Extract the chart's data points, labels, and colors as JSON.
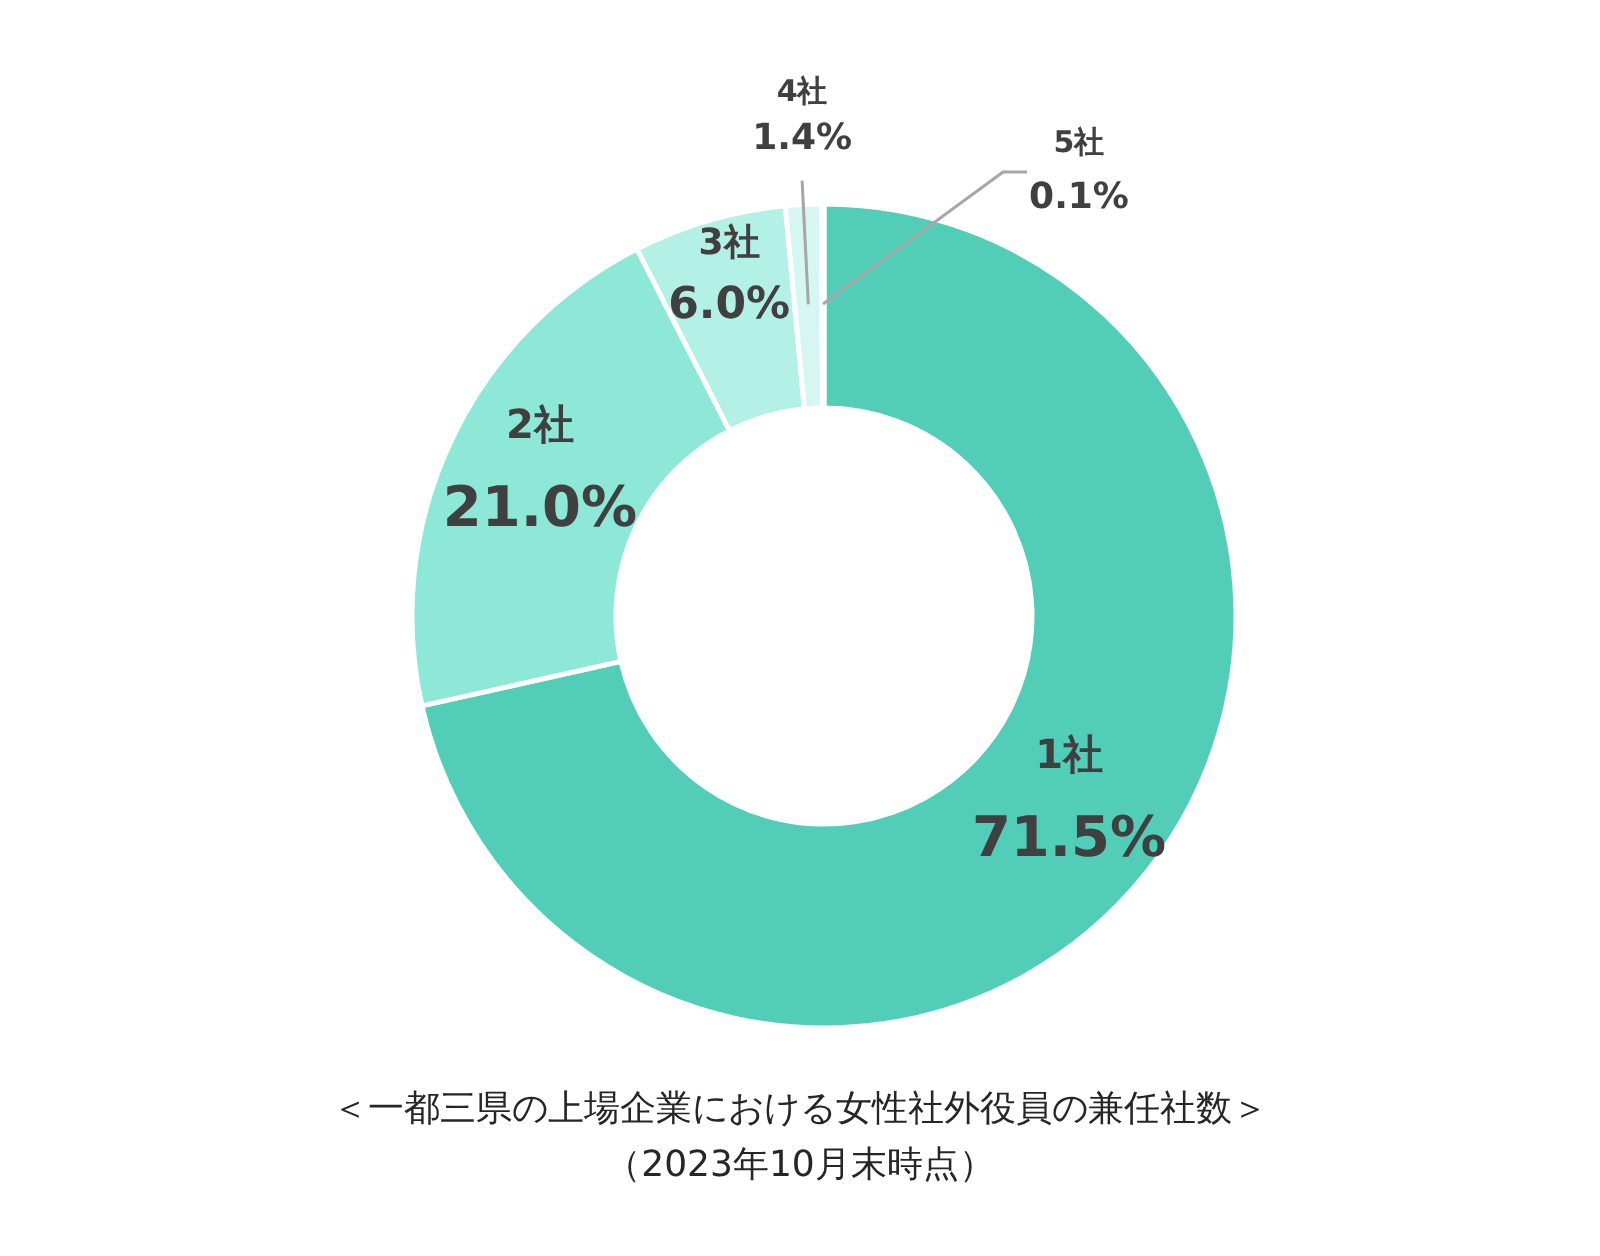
{
  "chart_data": {
    "type": "donut",
    "title": "＜一都三県の上場企業における女性社外役員の兼任社数＞",
    "subtitle": "（2023年10月末時点）",
    "categories": [
      "1社",
      "2社",
      "3社",
      "4社",
      "5社"
    ],
    "values": [
      71.5,
      21.0,
      6.0,
      1.4,
      0.1
    ],
    "value_labels": [
      "71.5%",
      "21.0%",
      "6.0%",
      "1.4%",
      "0.1%"
    ],
    "colors": [
      "#52cdb8",
      "#8ee8d8",
      "#b3f0e6",
      "#d6f7f1",
      "#e8fbf8"
    ]
  }
}
